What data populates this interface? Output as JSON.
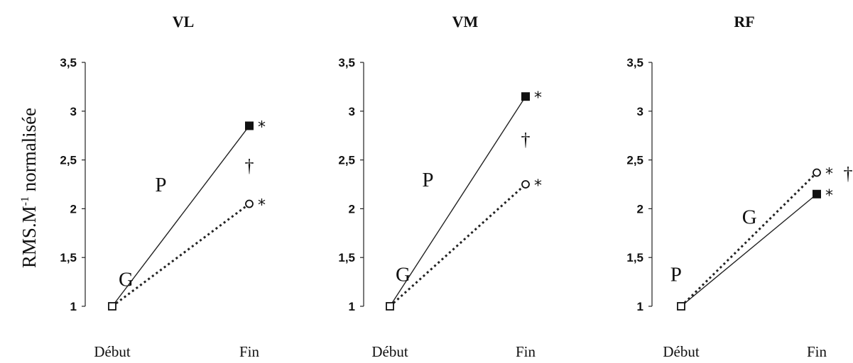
{
  "figure": {
    "ylabel": "RMS.M",
    "ylabel_sup": "-1",
    "ylabel_tail": " normalisée"
  },
  "chart_data": [
    {
      "type": "line",
      "title": "VL",
      "categories": [
        "Début",
        "Fin"
      ],
      "ylim": [
        1,
        3.5
      ],
      "yticks": [
        "1",
        "1,5",
        "2",
        "2,5",
        "3",
        "3,5"
      ],
      "yticks_values": [
        1,
        1.5,
        2,
        2.5,
        3,
        3.5
      ],
      "series": [
        {
          "name": "P",
          "values": [
            1,
            2.85
          ],
          "line_style": "solid",
          "end_marker": "filled-square",
          "end_annotation": "*",
          "label_at_y": 2.25
        },
        {
          "name": "G",
          "values": [
            1,
            2.05
          ],
          "line_style": "dotted",
          "end_marker": "open-circle",
          "end_annotation": "*",
          "label_at_y": 1.28
        }
      ],
      "between_annotation": "†",
      "between_annotation_y": 2.45,
      "start_marker": "open-square",
      "grid": false
    },
    {
      "type": "line",
      "title": "VM",
      "categories": [
        "Début",
        "Fin"
      ],
      "ylim": [
        1,
        3.5
      ],
      "yticks": [
        "1",
        "1,5",
        "2",
        "2,5",
        "3",
        "3,5"
      ],
      "yticks_values": [
        1,
        1.5,
        2,
        2.5,
        3,
        3.5
      ],
      "series": [
        {
          "name": "P",
          "values": [
            1,
            3.15
          ],
          "line_style": "solid",
          "end_marker": "filled-square",
          "end_annotation": "*",
          "label_at_y": 2.3
        },
        {
          "name": "G",
          "values": [
            1,
            2.25
          ],
          "line_style": "dotted",
          "end_marker": "open-circle",
          "end_annotation": "*",
          "label_at_y": 1.33
        }
      ],
      "between_annotation": "†",
      "between_annotation_y": 2.72,
      "start_marker": "open-square",
      "grid": false
    },
    {
      "type": "line",
      "title": "RF",
      "categories": [
        "Début",
        "Fin"
      ],
      "ylim": [
        1,
        3.5
      ],
      "yticks": [
        "1",
        "1,5",
        "2",
        "2,5",
        "3",
        "3,5"
      ],
      "yticks_values": [
        1,
        1.5,
        2,
        2.5,
        3,
        3.5
      ],
      "series": [
        {
          "name": "P",
          "values": [
            1,
            2.15
          ],
          "line_style": "solid",
          "end_marker": "filled-square",
          "end_annotation": "*",
          "label_at_y": 1.33
        },
        {
          "name": "G",
          "values": [
            1,
            2.37
          ],
          "line_style": "dotted",
          "end_marker": "open-circle",
          "end_annotation": "*",
          "label_at_y": 1.92
        }
      ],
      "between_annotation": "†",
      "between_annotation_y": 2.37,
      "start_marker": "open-square",
      "grid": false
    }
  ]
}
